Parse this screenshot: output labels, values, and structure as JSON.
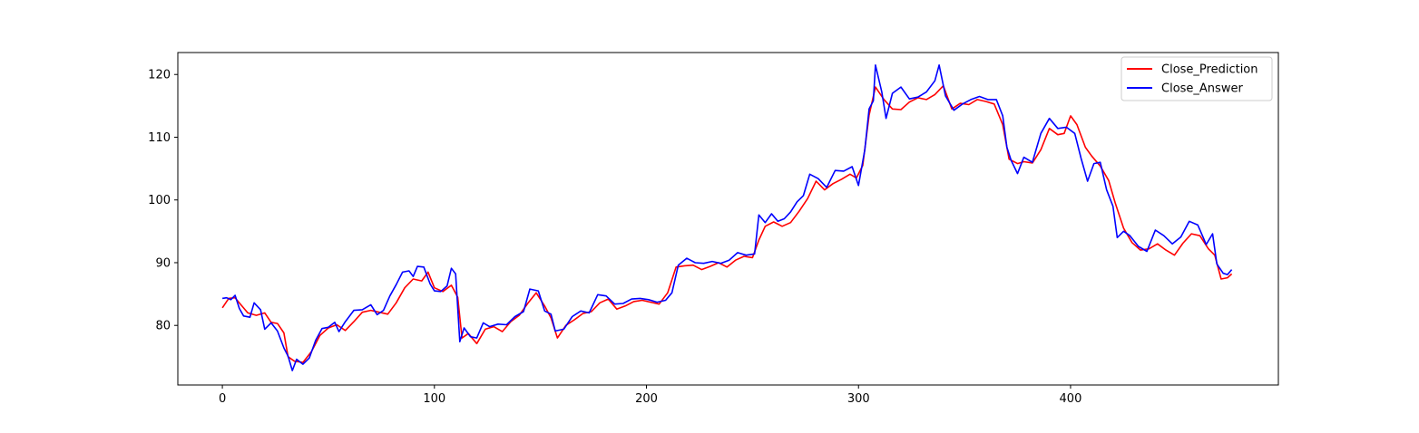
{
  "chart_data": {
    "type": "line",
    "title": "",
    "xlabel": "",
    "ylabel": "",
    "xlim": [
      -21,
      498
    ],
    "ylim": [
      70.5,
      123.5
    ],
    "xticks": [
      0,
      100,
      200,
      300,
      400
    ],
    "yticks": [
      80,
      90,
      100,
      110,
      120
    ],
    "grid": false,
    "legend_position": "top-right",
    "series": [
      {
        "name": "Close_Prediction",
        "color": "#ff0000",
        "points": [
          [
            0,
            82.8
          ],
          [
            3,
            84.3
          ],
          [
            6,
            84.4
          ],
          [
            9,
            83.2
          ],
          [
            12,
            82.0
          ],
          [
            16,
            81.6
          ],
          [
            20,
            82.0
          ],
          [
            23,
            80.5
          ],
          [
            26,
            80.3
          ],
          [
            29,
            78.8
          ],
          [
            31,
            75.0
          ],
          [
            34,
            74.3
          ],
          [
            38,
            74.1
          ],
          [
            42,
            75.8
          ],
          [
            46,
            78.4
          ],
          [
            50,
            79.6
          ],
          [
            54,
            80.1
          ],
          [
            58,
            79.2
          ],
          [
            62,
            80.6
          ],
          [
            66,
            82.1
          ],
          [
            70,
            82.4
          ],
          [
            74,
            82.1
          ],
          [
            78,
            81.8
          ],
          [
            82,
            83.6
          ],
          [
            86,
            86.0
          ],
          [
            90,
            87.4
          ],
          [
            94,
            87.1
          ],
          [
            97,
            88.5
          ],
          [
            100,
            86.0
          ],
          [
            104,
            85.4
          ],
          [
            108,
            86.4
          ],
          [
            111,
            84.5
          ],
          [
            113,
            78.0
          ],
          [
            116,
            78.7
          ],
          [
            120,
            77.1
          ],
          [
            124,
            79.4
          ],
          [
            128,
            79.8
          ],
          [
            132,
            79.0
          ],
          [
            136,
            80.6
          ],
          [
            140,
            81.6
          ],
          [
            144,
            83.5
          ],
          [
            148,
            85.2
          ],
          [
            152,
            83.1
          ],
          [
            155,
            81.2
          ],
          [
            158,
            78.0
          ],
          [
            162,
            80.0
          ],
          [
            166,
            80.9
          ],
          [
            170,
            81.9
          ],
          [
            174,
            82.2
          ],
          [
            178,
            83.6
          ],
          [
            182,
            84.2
          ],
          [
            186,
            82.6
          ],
          [
            190,
            83.1
          ],
          [
            194,
            83.8
          ],
          [
            198,
            84.0
          ],
          [
            202,
            83.7
          ],
          [
            206,
            83.4
          ],
          [
            210,
            85.2
          ],
          [
            214,
            89.3
          ],
          [
            218,
            89.5
          ],
          [
            222,
            89.6
          ],
          [
            226,
            88.9
          ],
          [
            230,
            89.4
          ],
          [
            234,
            90.0
          ],
          [
            238,
            89.3
          ],
          [
            242,
            90.4
          ],
          [
            246,
            91.0
          ],
          [
            250,
            90.8
          ],
          [
            253,
            93.6
          ],
          [
            256,
            95.8
          ],
          [
            260,
            96.5
          ],
          [
            264,
            95.8
          ],
          [
            268,
            96.4
          ],
          [
            272,
            98.2
          ],
          [
            276,
            100.2
          ],
          [
            280,
            103.0
          ],
          [
            284,
            101.6
          ],
          [
            288,
            102.6
          ],
          [
            292,
            103.3
          ],
          [
            296,
            104.1
          ],
          [
            299,
            103.5
          ],
          [
            302,
            105.5
          ],
          [
            305,
            113.5
          ],
          [
            308,
            118.0
          ],
          [
            312,
            116.0
          ],
          [
            316,
            114.5
          ],
          [
            320,
            114.4
          ],
          [
            324,
            115.6
          ],
          [
            328,
            116.3
          ],
          [
            332,
            116.0
          ],
          [
            336,
            116.8
          ],
          [
            340,
            118.2
          ],
          [
            344,
            114.5
          ],
          [
            348,
            115.4
          ],
          [
            352,
            115.2
          ],
          [
            356,
            116.0
          ],
          [
            360,
            115.7
          ],
          [
            364,
            115.3
          ],
          [
            368,
            112.0
          ],
          [
            371,
            106.5
          ],
          [
            375,
            105.8
          ],
          [
            378,
            106.1
          ],
          [
            382,
            105.9
          ],
          [
            386,
            108.0
          ],
          [
            390,
            111.4
          ],
          [
            394,
            110.4
          ],
          [
            397,
            110.6
          ],
          [
            400,
            113.4
          ],
          [
            403,
            112.0
          ],
          [
            407,
            108.4
          ],
          [
            410,
            107.0
          ],
          [
            414,
            105.4
          ],
          [
            418,
            103.1
          ],
          [
            421,
            99.6
          ],
          [
            425,
            95.5
          ],
          [
            429,
            93.2
          ],
          [
            433,
            92.0
          ],
          [
            437,
            92.2
          ],
          [
            441,
            93.0
          ],
          [
            445,
            92.0
          ],
          [
            449,
            91.2
          ],
          [
            453,
            93.1
          ],
          [
            457,
            94.6
          ],
          [
            461,
            94.3
          ],
          [
            465,
            92.2
          ],
          [
            468,
            91.2
          ],
          [
            471,
            87.4
          ],
          [
            474,
            87.6
          ],
          [
            476,
            88.2
          ]
        ]
      },
      {
        "name": "Close_Answer",
        "color": "#0000ff",
        "points": [
          [
            0,
            84.3
          ],
          [
            2,
            84.4
          ],
          [
            4,
            84.1
          ],
          [
            6,
            84.8
          ],
          [
            8,
            82.7
          ],
          [
            10,
            81.5
          ],
          [
            13,
            81.3
          ],
          [
            15,
            83.6
          ],
          [
            18,
            82.5
          ],
          [
            20,
            79.4
          ],
          [
            23,
            80.4
          ],
          [
            26,
            79.1
          ],
          [
            29,
            76.4
          ],
          [
            31,
            75.1
          ],
          [
            33,
            72.8
          ],
          [
            35,
            74.6
          ],
          [
            38,
            73.8
          ],
          [
            41,
            74.8
          ],
          [
            44,
            77.6
          ],
          [
            47,
            79.5
          ],
          [
            50,
            79.7
          ],
          [
            53,
            80.5
          ],
          [
            55,
            79.0
          ],
          [
            58,
            80.6
          ],
          [
            62,
            82.4
          ],
          [
            66,
            82.5
          ],
          [
            70,
            83.3
          ],
          [
            73,
            81.7
          ],
          [
            76,
            82.4
          ],
          [
            79,
            84.7
          ],
          [
            82,
            86.5
          ],
          [
            85,
            88.5
          ],
          [
            88,
            88.7
          ],
          [
            90,
            87.8
          ],
          [
            92,
            89.4
          ],
          [
            95,
            89.3
          ],
          [
            98,
            86.6
          ],
          [
            100,
            85.5
          ],
          [
            103,
            85.4
          ],
          [
            106,
            86.3
          ],
          [
            108,
            89.1
          ],
          [
            110,
            88.2
          ],
          [
            112,
            77.4
          ],
          [
            114,
            79.6
          ],
          [
            117,
            78.2
          ],
          [
            120,
            78.0
          ],
          [
            123,
            80.4
          ],
          [
            126,
            79.8
          ],
          [
            130,
            80.2
          ],
          [
            134,
            80.1
          ],
          [
            138,
            81.4
          ],
          [
            142,
            82.2
          ],
          [
            145,
            85.8
          ],
          [
            149,
            85.5
          ],
          [
            152,
            82.3
          ],
          [
            155,
            81.8
          ],
          [
            157,
            79.1
          ],
          [
            161,
            79.4
          ],
          [
            165,
            81.4
          ],
          [
            169,
            82.3
          ],
          [
            173,
            82.0
          ],
          [
            177,
            84.9
          ],
          [
            181,
            84.7
          ],
          [
            185,
            83.4
          ],
          [
            189,
            83.5
          ],
          [
            193,
            84.2
          ],
          [
            197,
            84.3
          ],
          [
            201,
            84.1
          ],
          [
            205,
            83.7
          ],
          [
            209,
            84.0
          ],
          [
            212,
            85.2
          ],
          [
            215,
            89.6
          ],
          [
            219,
            90.7
          ],
          [
            223,
            90.0
          ],
          [
            227,
            89.9
          ],
          [
            231,
            90.2
          ],
          [
            235,
            89.9
          ],
          [
            239,
            90.4
          ],
          [
            243,
            91.6
          ],
          [
            247,
            91.2
          ],
          [
            251,
            91.4
          ],
          [
            253,
            97.6
          ],
          [
            256,
            96.4
          ],
          [
            259,
            97.8
          ],
          [
            262,
            96.6
          ],
          [
            265,
            97.0
          ],
          [
            268,
            98.1
          ],
          [
            271,
            99.7
          ],
          [
            274,
            100.7
          ],
          [
            277,
            104.1
          ],
          [
            281,
            103.4
          ],
          [
            285,
            102.0
          ],
          [
            289,
            104.7
          ],
          [
            293,
            104.6
          ],
          [
            297,
            105.3
          ],
          [
            300,
            102.3
          ],
          [
            303,
            108.0
          ],
          [
            305,
            114.5
          ],
          [
            307,
            115.8
          ],
          [
            308,
            121.5
          ],
          [
            311,
            117.2
          ],
          [
            313,
            113.0
          ],
          [
            316,
            117.0
          ],
          [
            320,
            118.0
          ],
          [
            324,
            116.1
          ],
          [
            328,
            116.4
          ],
          [
            332,
            117.2
          ],
          [
            336,
            119.0
          ],
          [
            338,
            121.5
          ],
          [
            341,
            116.6
          ],
          [
            345,
            114.3
          ],
          [
            349,
            115.3
          ],
          [
            353,
            116.0
          ],
          [
            357,
            116.5
          ],
          [
            361,
            116.0
          ],
          [
            365,
            116.0
          ],
          [
            368,
            113.4
          ],
          [
            370,
            108.4
          ],
          [
            372,
            106.3
          ],
          [
            375,
            104.2
          ],
          [
            378,
            106.8
          ],
          [
            382,
            106.0
          ],
          [
            386,
            110.6
          ],
          [
            390,
            113.0
          ],
          [
            394,
            111.4
          ],
          [
            398,
            111.6
          ],
          [
            402,
            110.6
          ],
          [
            405,
            106.6
          ],
          [
            408,
            103.0
          ],
          [
            411,
            105.8
          ],
          [
            414,
            106.0
          ],
          [
            417,
            101.6
          ],
          [
            420,
            99.0
          ],
          [
            422,
            94.0
          ],
          [
            425,
            95.0
          ],
          [
            428,
            94.3
          ],
          [
            432,
            92.6
          ],
          [
            436,
            91.8
          ],
          [
            440,
            95.2
          ],
          [
            444,
            94.3
          ],
          [
            448,
            93.0
          ],
          [
            452,
            94.1
          ],
          [
            456,
            96.6
          ],
          [
            460,
            96.0
          ],
          [
            464,
            92.9
          ],
          [
            467,
            94.6
          ],
          [
            469,
            89.8
          ],
          [
            472,
            88.3
          ],
          [
            474,
            88.1
          ],
          [
            476,
            88.9
          ]
        ]
      }
    ]
  }
}
